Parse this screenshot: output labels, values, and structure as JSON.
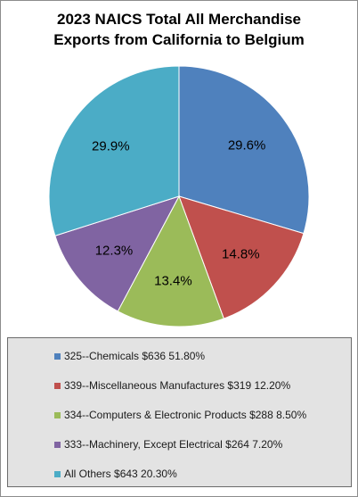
{
  "chart_data": {
    "type": "pie",
    "title_lines": [
      "2023 NAICS Total All Merchandise",
      "Exports from California to Belgium"
    ],
    "slices": [
      {
        "label": "325--Chemicals $636 51.80%",
        "percent_label": "29.6%",
        "value": 29.6,
        "color": "#4f81bd"
      },
      {
        "label": "339--Miscellaneous Manufactures $319 12.20%",
        "percent_label": "14.8%",
        "value": 14.8,
        "color": "#c0504d"
      },
      {
        "label": "334--Computers & Electronic Products $288 8.50%",
        "percent_label": "13.4%",
        "value": 13.4,
        "color": "#9bbb59"
      },
      {
        "label": "333--Machinery, Except Electrical $264 7.20%",
        "percent_label": "12.3%",
        "value": 12.3,
        "color": "#8064a2"
      },
      {
        "label": "All Others $643  20.30%",
        "percent_label": "29.9%",
        "value": 29.9,
        "color": "#4bacc6"
      }
    ],
    "legend_placement": "bottom"
  }
}
